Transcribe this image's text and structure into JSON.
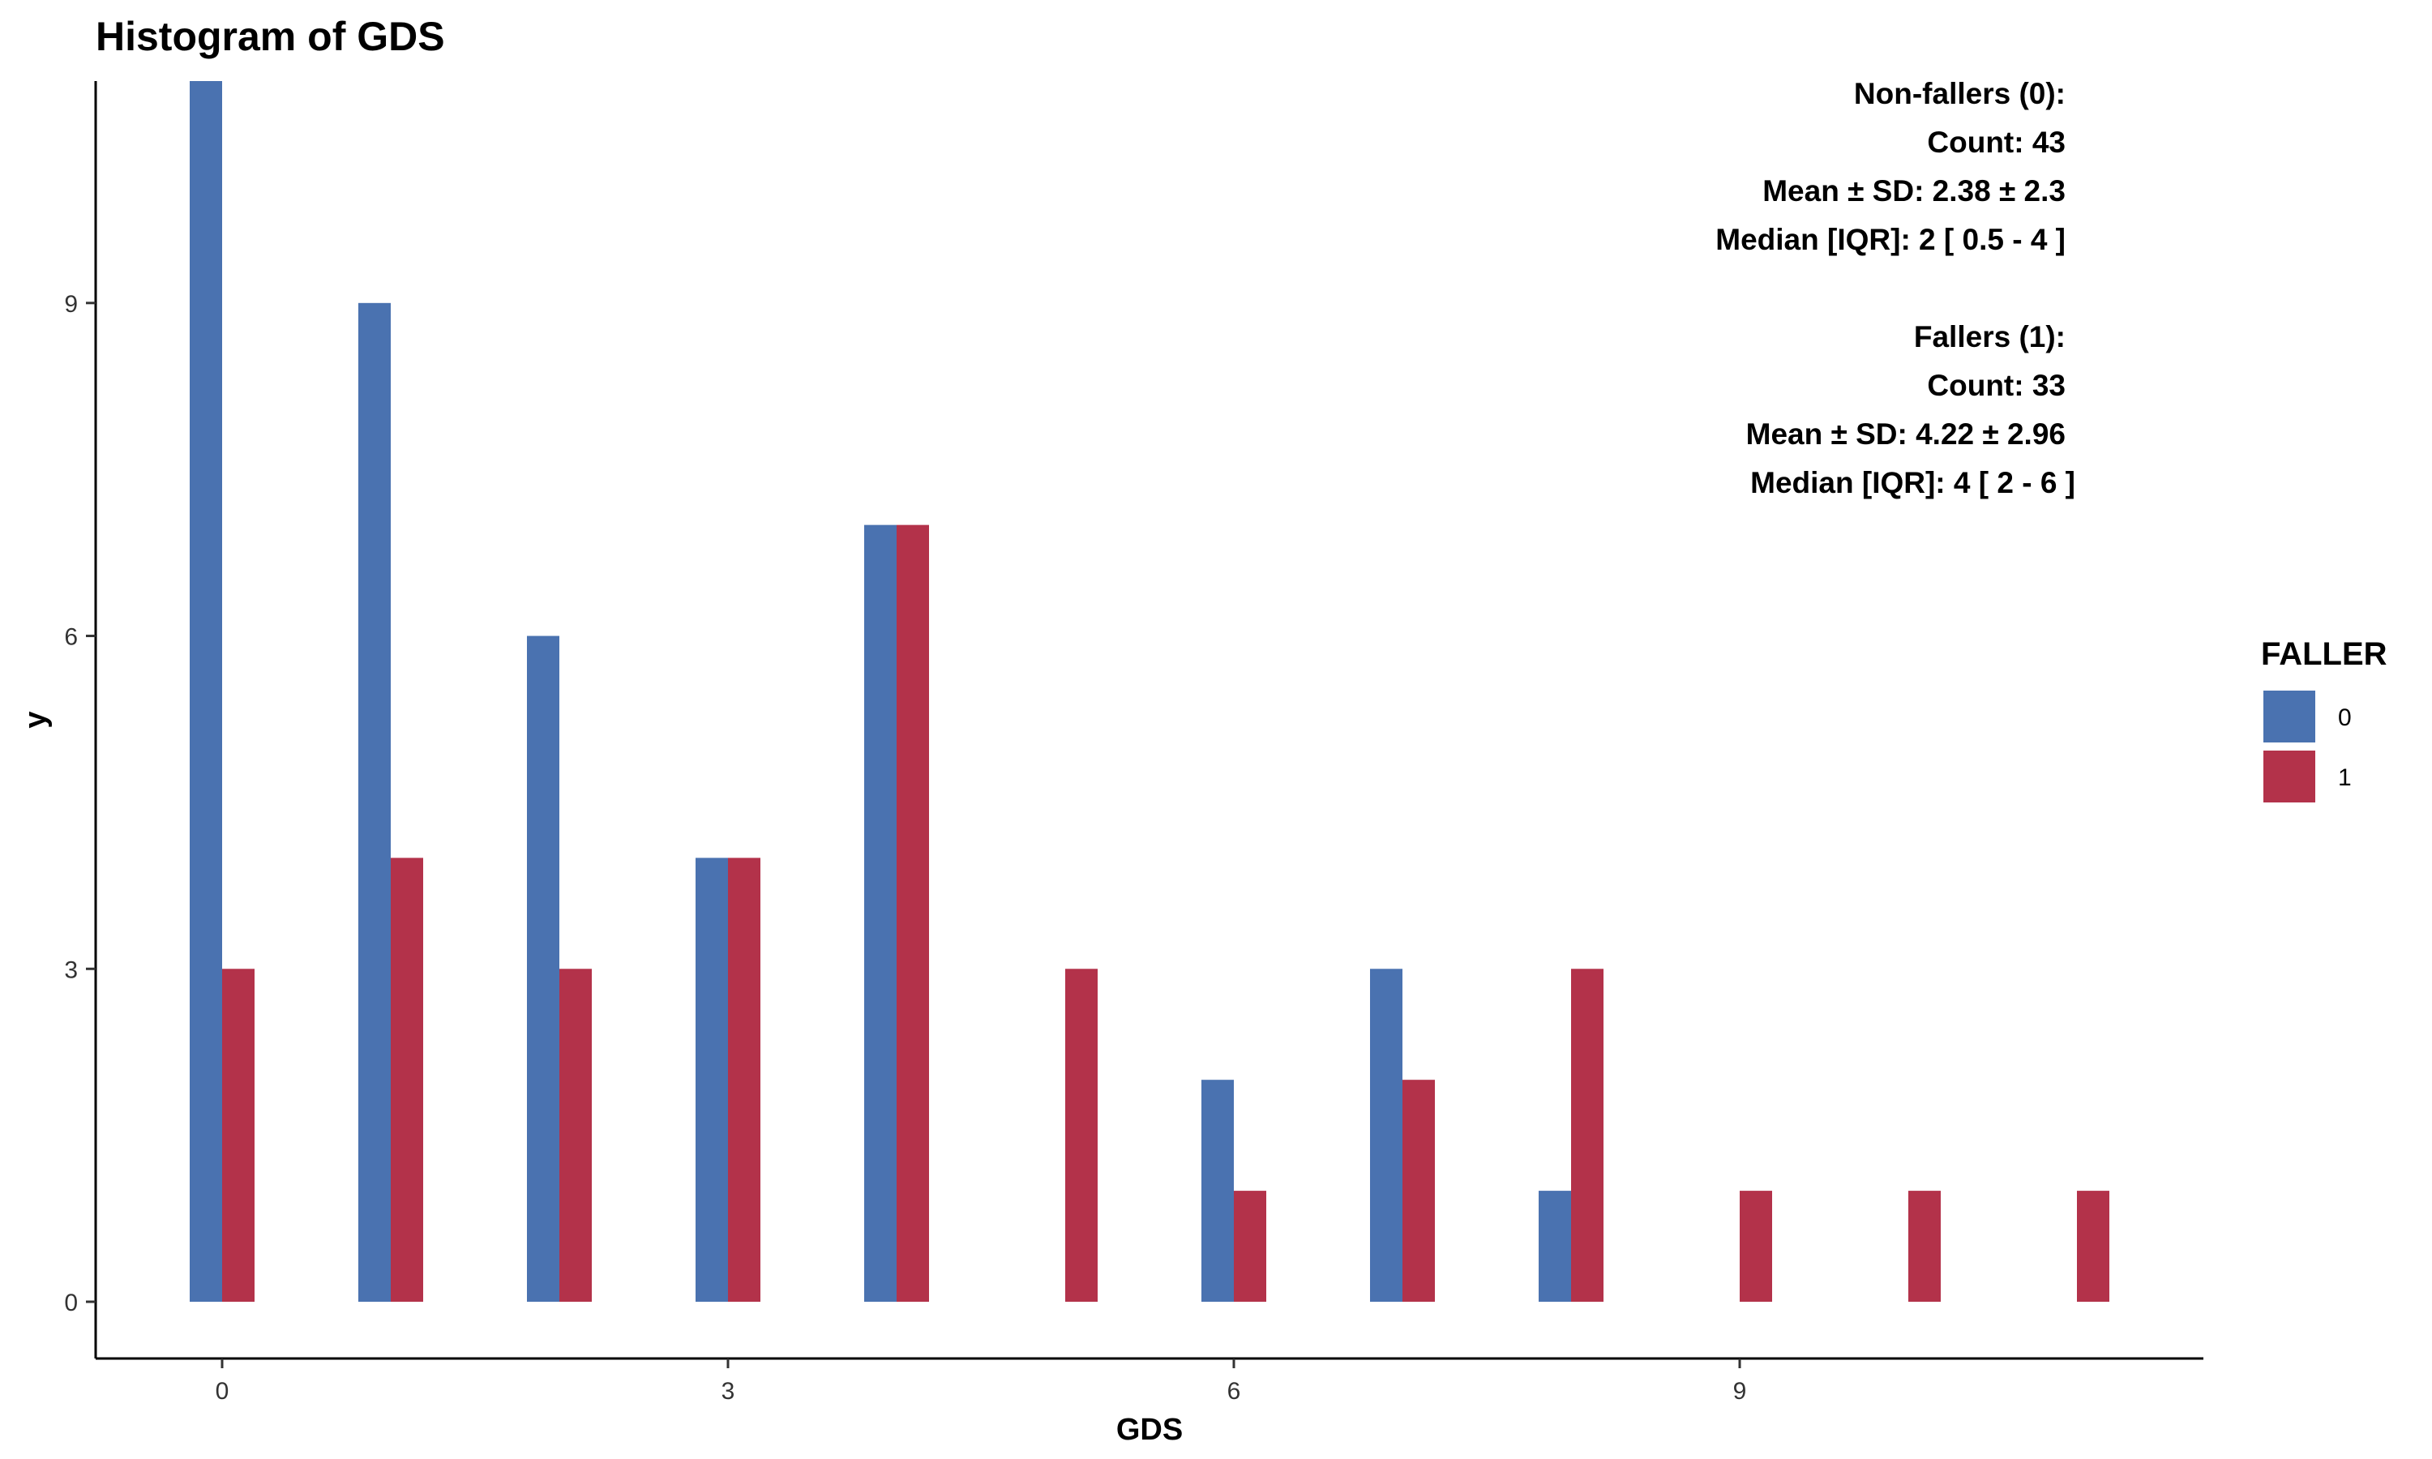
{
  "chart_data": {
    "type": "bar",
    "title": "Histogram of GDS",
    "xlabel": "GDS",
    "ylabel": "y",
    "xlim": [
      -0.75,
      11.75
    ],
    "ylim": [
      0,
      11
    ],
    "x_ticks": [
      0,
      3,
      6,
      9
    ],
    "y_ticks": [
      0,
      3,
      6,
      9
    ],
    "grid": false,
    "legend": {
      "title": "FALLER",
      "position": "right",
      "entries": [
        {
          "label": "0",
          "color": "#4A72B0"
        },
        {
          "label": "1",
          "color": "#B3324A"
        }
      ]
    },
    "series": [
      {
        "name": "0",
        "color": "#4A72B0",
        "points": [
          {
            "x": 0,
            "y": 11
          },
          {
            "x": 1,
            "y": 9
          },
          {
            "x": 2,
            "y": 6
          },
          {
            "x": 3,
            "y": 4
          },
          {
            "x": 4,
            "y": 7
          },
          {
            "x": 6,
            "y": 2
          },
          {
            "x": 7,
            "y": 3
          },
          {
            "x": 8,
            "y": 1
          }
        ]
      },
      {
        "name": "1",
        "color": "#B3324A",
        "points": [
          {
            "x": 0,
            "y": 3
          },
          {
            "x": 1,
            "y": 4
          },
          {
            "x": 2,
            "y": 3
          },
          {
            "x": 3,
            "y": 4
          },
          {
            "x": 4,
            "y": 7
          },
          {
            "x": 5,
            "y": 3
          },
          {
            "x": 6,
            "y": 1
          },
          {
            "x": 7,
            "y": 2
          },
          {
            "x": 8,
            "y": 3
          },
          {
            "x": 9,
            "y": 1
          },
          {
            "x": 10,
            "y": 1
          },
          {
            "x": 11,
            "y": 1
          }
        ]
      }
    ],
    "annotations": [
      "Non-fallers (0):",
      "Count: 43",
      "Mean ± SD: 2.38 ± 2.3",
      "Median [IQR]: 2 [ 0.5 - 4 ]",
      "",
      "Fallers (1):",
      "Count: 33",
      "Mean ± SD: 4.22 ± 2.96",
      "Median [IQR]: 4 [ 2 - 6 ]"
    ]
  }
}
